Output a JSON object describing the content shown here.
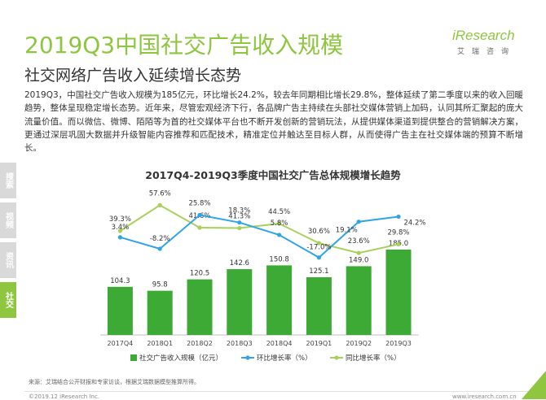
{
  "header": {
    "title": "2019Q3中国社交广告收入规模",
    "subtitle": "社交网络广告收入延续增长态势",
    "logo_main": "iResearch",
    "logo_sub": "艾瑞咨询"
  },
  "body_text": "2019Q3，中国社交广告收入规模为185亿元，环比增长24.2%，较去年同期相比增长29.8%，整体延续了第二季度以来的收入回暖趋势，整体呈现稳定增长态势。近年来，尽管宏观经济下行，各品牌广告主持续在头部社交媒体营销上加码，认同其所汇聚起的庞大流量价值。而以微信、微博、陌陌等为首的社交媒体平台也不断开发创新的营销玩法，从提供媒体渠道到提供整合的营销解决方案，更通过深层巩固大数据并升级智能内容推荐和匹配技术，精准定位并触达至目标人群，从而使得广告主在社交媒体端的预算不断增长。",
  "side_tabs": [
    "搜索",
    "视频",
    "资讯",
    "社交"
  ],
  "active_tab": "社交",
  "colors": {
    "brand": "#8ec63f",
    "bar": "#3daa35",
    "qoq_line": "#2fa4e7",
    "yoy_line": "#a8d05a"
  },
  "chart_data": {
    "type": "bar",
    "title": "2017Q4-2019Q3季度中国社交广告总体规模增长趋势",
    "categories": [
      "2017Q4",
      "2018Q1",
      "2018Q2",
      "2018Q3",
      "2018Q4",
      "2019Q1",
      "2019Q2",
      "2019Q3"
    ],
    "series": [
      {
        "name": "社交广告收入规模（亿元）",
        "type": "bar",
        "values": [
          104.3,
          95.8,
          120.5,
          142.6,
          150.8,
          125.1,
          149.0,
          185.0
        ],
        "labels": [
          "104.3",
          "95.8",
          "120.5",
          "142.6",
          "150.8",
          "125.1",
          "149.0",
          "185.0"
        ]
      },
      {
        "name": "环比增长率（%）",
        "type": "line",
        "values": [
          3.4,
          -8.2,
          25.8,
          18.3,
          5.8,
          -17.0,
          19.1,
          24.2
        ],
        "labels": [
          "3.4%",
          "-8.2%",
          "25.8%",
          "18.3%",
          "5.8%",
          "-17.0%",
          "19.1%",
          "24.2%"
        ]
      },
      {
        "name": "同比增长率（%）",
        "type": "line",
        "values": [
          39.3,
          57.6,
          41.6,
          41.3,
          44.5,
          30.6,
          23.6,
          29.8
        ],
        "labels": [
          "39.3%",
          "57.6%",
          "41.6%",
          "41.3%",
          "44.5%",
          "30.6%",
          "23.6%",
          "29.8%"
        ]
      }
    ],
    "legend": "bottom",
    "grid": false
  },
  "footer": {
    "source": "来源：艾瑞结合公开财报和专家访谈，根据艾瑞数据模型推算所得。",
    "copyright": "©2019.12 iResearch Inc.",
    "website": "www.iresearch.com.cn"
  }
}
